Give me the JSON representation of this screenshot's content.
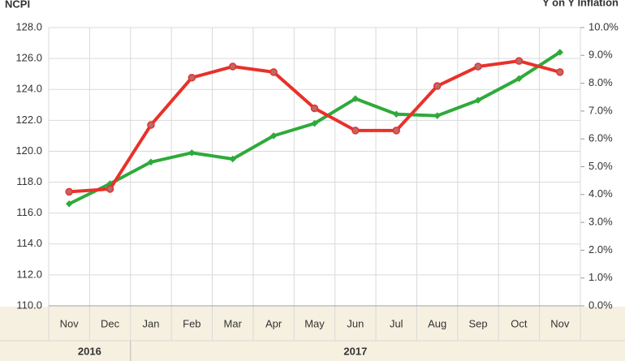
{
  "chart_data": {
    "type": "line",
    "y_label": "NCPI",
    "y2_label": "Y on Y Inflation",
    "categories": [
      "Nov",
      "Dec",
      "Jan",
      "Feb",
      "Mar",
      "Apr",
      "May",
      "Jun",
      "Jul",
      "Aug",
      "Sep",
      "Oct",
      "Nov"
    ],
    "x_groups": [
      {
        "label": "2016",
        "count": 2
      },
      {
        "label": "2017",
        "count": 11
      }
    ],
    "series": [
      {
        "color": "#2eaa3a",
        "values": [
          116.6,
          117.9,
          119.3,
          119.9,
          119.5,
          121.0,
          121.8,
          123.4,
          122.4,
          122.3,
          123.3,
          124.7,
          126.4
        ]
      },
      {
        "color": "#e8312a",
        "axis": "y2",
        "values": [
          4.1,
          4.2,
          6.5,
          8.2,
          8.6,
          8.4,
          7.1,
          6.3,
          6.3,
          7.9,
          8.6,
          8.8,
          8.4
        ]
      }
    ],
    "ylim": [
      110,
      128
    ],
    "yticks": [
      {
        "value": 110,
        "label": "110.0"
      },
      {
        "value": 112,
        "label": "112.0"
      },
      {
        "value": 114,
        "label": "114.0"
      },
      {
        "value": 116,
        "label": "116.0"
      },
      {
        "value": 118,
        "label": "118.0"
      },
      {
        "value": 120,
        "label": "120.0"
      },
      {
        "value": 122,
        "label": "122.0"
      },
      {
        "value": 124,
        "label": "124.0"
      },
      {
        "value": 126,
        "label": "126.0"
      },
      {
        "value": 128,
        "label": "128.0"
      }
    ],
    "y2lim": [
      0,
      10
    ],
    "y2ticks": [
      {
        "value": 0,
        "label": "0.0%"
      },
      {
        "value": 1,
        "label": "1.0%"
      },
      {
        "value": 2,
        "label": "2.0%"
      },
      {
        "value": 3,
        "label": "3.0%"
      },
      {
        "value": 4,
        "label": "4.0%"
      },
      {
        "value": 5,
        "label": "5.0%"
      },
      {
        "value": 6,
        "label": "6.0%"
      },
      {
        "value": 7,
        "label": "7.0%"
      },
      {
        "value": 8,
        "label": "8.0%"
      },
      {
        "value": 9,
        "label": "9.0%"
      },
      {
        "value": 10,
        "label": "10.0%"
      }
    ],
    "grid": true
  }
}
